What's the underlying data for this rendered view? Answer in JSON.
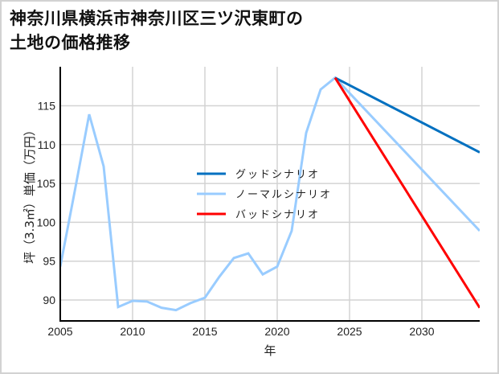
{
  "title_line1": "神奈川県横浜市神奈川区三ツ沢東町の",
  "title_line2": "土地の価格推移",
  "chart_data": {
    "type": "line",
    "title": "神奈川県横浜市神奈川区三ツ沢東町の土地の価格推移",
    "xlabel": "年",
    "ylabel": "坪（3.3㎡）単価（万円）",
    "xlim": [
      2005,
      2034
    ],
    "ylim": [
      87.3,
      119.8
    ],
    "x_ticks": [
      2005,
      2010,
      2015,
      2020,
      2025,
      2030
    ],
    "y_ticks": [
      90,
      95,
      100,
      105,
      110,
      115
    ],
    "grid": true,
    "legend_position": "center",
    "series": [
      {
        "name": "ノーマルシナリオ",
        "color": "#99ccff",
        "x": [
          2005,
          2006,
          2007,
          2008,
          2009,
          2010,
          2011,
          2012,
          2013,
          2014,
          2015,
          2016,
          2017,
          2018,
          2019,
          2020,
          2021,
          2022,
          2023,
          2024,
          2034
        ],
        "values": [
          94.3,
          104.0,
          113.9,
          107.2,
          89.1,
          89.9,
          89.8,
          89.0,
          88.7,
          89.6,
          90.3,
          93.0,
          95.4,
          96.0,
          93.3,
          94.3,
          98.9,
          111.5,
          117.1,
          118.6,
          98.9
        ]
      },
      {
        "name": "グッドシナリオ",
        "color": "#0070c0",
        "x": [
          2024,
          2034
        ],
        "values": [
          118.6,
          109.0
        ]
      },
      {
        "name": "バッドシナリオ",
        "color": "#ff0000",
        "x": [
          2024,
          2034
        ],
        "values": [
          118.6,
          89.0
        ]
      }
    ]
  },
  "legend": [
    {
      "label": "グッドシナリオ",
      "color": "#0070c0"
    },
    {
      "label": "ノーマルシナリオ",
      "color": "#99ccff"
    },
    {
      "label": "バッドシナリオ",
      "color": "#ff0000"
    }
  ],
  "x_tick_labels": [
    "2005",
    "2010",
    "2015",
    "2020",
    "2025",
    "2030"
  ],
  "y_tick_labels": [
    "90",
    "95",
    "100",
    "105",
    "110",
    "115"
  ],
  "xlabel": "年",
  "ylabel": "坪（3.3㎡）単価（万円）"
}
